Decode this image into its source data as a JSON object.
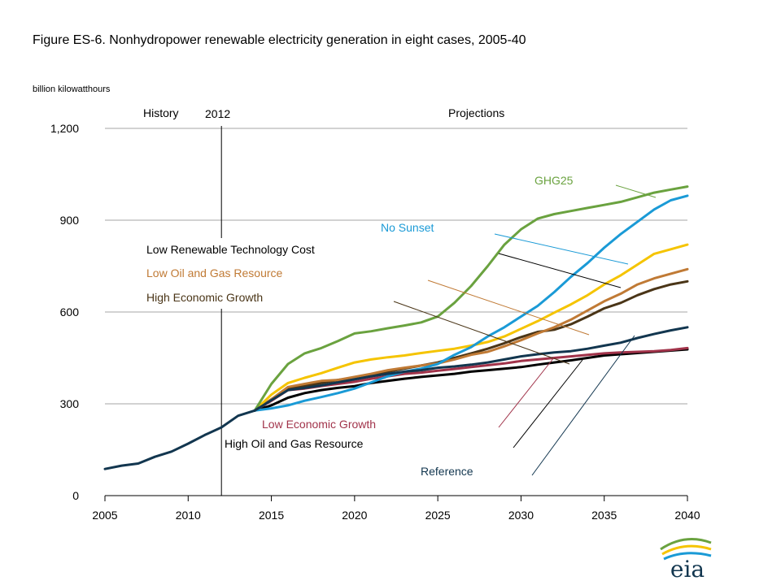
{
  "chart_data": {
    "type": "line",
    "title": "Figure ES-6. Nonhydropower renewable electricity generation in eight cases, 2005-40",
    "ylabel": "billion kilowatthours",
    "xlabel": "",
    "xlim": [
      2005,
      2040
    ],
    "ylim": [
      0,
      1200
    ],
    "x_ticks": [
      "2005",
      "2010",
      "2015",
      "2020",
      "2025",
      "2030",
      "2035",
      "2040"
    ],
    "y_ticks": [
      "0",
      "300",
      "600",
      "900",
      "1,200"
    ],
    "y_tick_values": [
      0,
      300,
      600,
      900,
      1200
    ],
    "x_tick_values": [
      2005,
      2010,
      2015,
      2020,
      2025,
      2030,
      2035,
      2040
    ],
    "grid": true,
    "divider_year": 2012,
    "divider_label": "2012",
    "history_label": "History",
    "projections_label": "Projections",
    "history": {
      "x": [
        2005,
        2006,
        2007,
        2008,
        2009,
        2010,
        2011,
        2012,
        2013,
        2014
      ],
      "values": [
        87,
        98,
        105,
        127,
        144,
        170,
        198,
        223,
        261,
        278
      ]
    },
    "x": [
      2014,
      2015,
      2016,
      2017,
      2018,
      2019,
      2020,
      2021,
      2022,
      2023,
      2024,
      2025,
      2026,
      2027,
      2028,
      2029,
      2030,
      2031,
      2032,
      2033,
      2034,
      2035,
      2036,
      2037,
      2038,
      2039,
      2040
    ],
    "series": [
      {
        "name": "GHG25",
        "color": "#6aa23f",
        "values": [
          278,
          365,
          430,
          465,
          482,
          505,
          530,
          537,
          547,
          556,
          566,
          585,
          630,
          685,
          750,
          820,
          870,
          905,
          920,
          930,
          940,
          950,
          960,
          975,
          990,
          1000,
          1010
        ]
      },
      {
        "name": "No Sunset",
        "color": "#1a9ad6",
        "values": [
          278,
          285,
          295,
          310,
          322,
          335,
          350,
          370,
          390,
          405,
          415,
          430,
          460,
          485,
          520,
          550,
          585,
          620,
          665,
          715,
          760,
          810,
          855,
          895,
          935,
          965,
          980
        ]
      },
      {
        "name": "Low Renewable Technology Cost",
        "color": "#f5c400",
        "values": [
          278,
          330,
          368,
          385,
          400,
          418,
          435,
          445,
          452,
          458,
          466,
          473,
          480,
          490,
          502,
          520,
          545,
          570,
          598,
          625,
          655,
          690,
          720,
          755,
          790,
          805,
          820
        ]
      },
      {
        "name": "Low Oil and Gas Resource",
        "color": "#c07a35",
        "values": [
          278,
          315,
          355,
          365,
          375,
          378,
          388,
          398,
          410,
          418,
          425,
          432,
          445,
          460,
          470,
          488,
          508,
          530,
          550,
          575,
          605,
          635,
          660,
          690,
          710,
          725,
          740
        ]
      },
      {
        "name": "High Economic Growth",
        "color": "#4a3517",
        "values": [
          278,
          315,
          350,
          358,
          368,
          378,
          385,
          395,
          405,
          415,
          425,
          435,
          450,
          465,
          480,
          498,
          518,
          535,
          542,
          560,
          585,
          612,
          630,
          655,
          675,
          690,
          700
        ]
      },
      {
        "name": "Reference",
        "color": "#12364f",
        "values": [
          278,
          312,
          345,
          352,
          360,
          370,
          380,
          390,
          398,
          405,
          410,
          418,
          422,
          428,
          435,
          445,
          455,
          462,
          468,
          472,
          480,
          490,
          500,
          515,
          528,
          540,
          550
        ]
      },
      {
        "name": "Low Economic Growth",
        "color": "#a1334a",
        "values": [
          278,
          310,
          345,
          350,
          358,
          365,
          372,
          382,
          390,
          398,
          402,
          408,
          414,
          420,
          426,
          432,
          440,
          445,
          450,
          455,
          460,
          465,
          468,
          470,
          472,
          476,
          482
        ]
      },
      {
        "name": "High Oil and Gas Resource",
        "color": "#000000",
        "values": [
          278,
          295,
          320,
          335,
          345,
          352,
          358,
          368,
          375,
          382,
          388,
          393,
          398,
          405,
          410,
          415,
          420,
          428,
          435,
          442,
          450,
          458,
          462,
          466,
          470,
          474,
          478
        ]
      }
    ]
  },
  "logo": {
    "text": "eia",
    "arc_colors": [
      "#6aa23f",
      "#f5c400",
      "#1a9ad6"
    ]
  }
}
